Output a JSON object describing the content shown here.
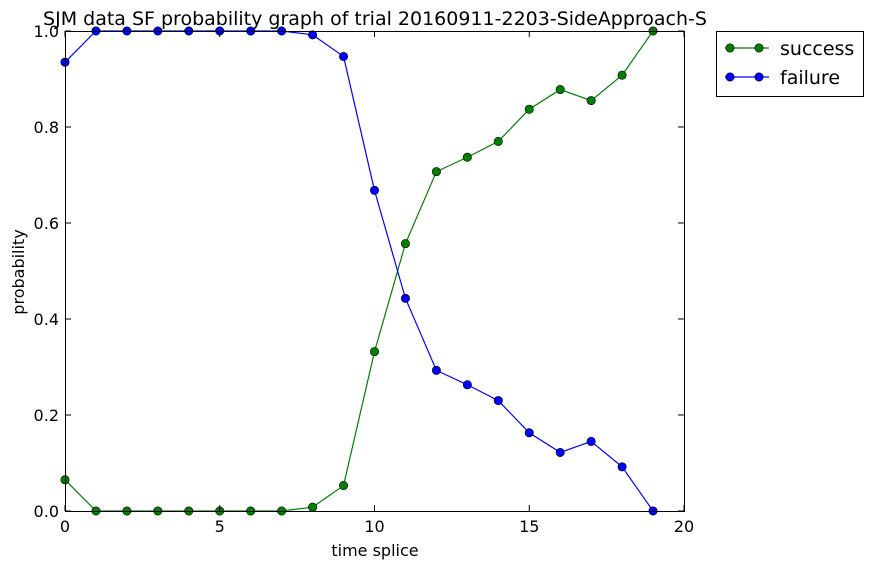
{
  "chart_data": {
    "type": "line",
    "title": "SJM data SF probability graph of trial 20160911-2203-SideApproach-S",
    "xlabel": "time splice",
    "ylabel": "probability",
    "xlim": [
      0,
      20
    ],
    "ylim": [
      0.0,
      1.0
    ],
    "xticks": [
      0,
      5,
      10,
      15,
      20
    ],
    "yticks": [
      0.0,
      0.2,
      0.4,
      0.6,
      0.8,
      1.0
    ],
    "xtick_labels": [
      "0",
      "5",
      "10",
      "15",
      "20"
    ],
    "ytick_labels": [
      "0.0",
      "0.2",
      "0.4",
      "0.6",
      "0.8",
      "1.0"
    ],
    "grid": false,
    "legend_position": "outside-top-right",
    "x": [
      0,
      1,
      2,
      3,
      4,
      5,
      6,
      7,
      8,
      9,
      10,
      11,
      12,
      13,
      14,
      15,
      16,
      17,
      18,
      19
    ],
    "series": [
      {
        "name": "success",
        "color": "#008000",
        "marker": "circle",
        "values": [
          0.065,
          0.0,
          0.0,
          0.0,
          0.0,
          0.0,
          0.0,
          0.0,
          0.008,
          0.053,
          0.332,
          0.557,
          0.707,
          0.737,
          0.77,
          0.837,
          0.878,
          0.855,
          0.908,
          1.0
        ]
      },
      {
        "name": "failure",
        "color": "#0000ff",
        "marker": "circle",
        "values": [
          0.935,
          1.0,
          1.0,
          1.0,
          1.0,
          1.0,
          1.0,
          1.0,
          0.992,
          0.947,
          0.668,
          0.443,
          0.293,
          0.263,
          0.23,
          0.163,
          0.122,
          0.145,
          0.092,
          0.0
        ]
      }
    ]
  }
}
